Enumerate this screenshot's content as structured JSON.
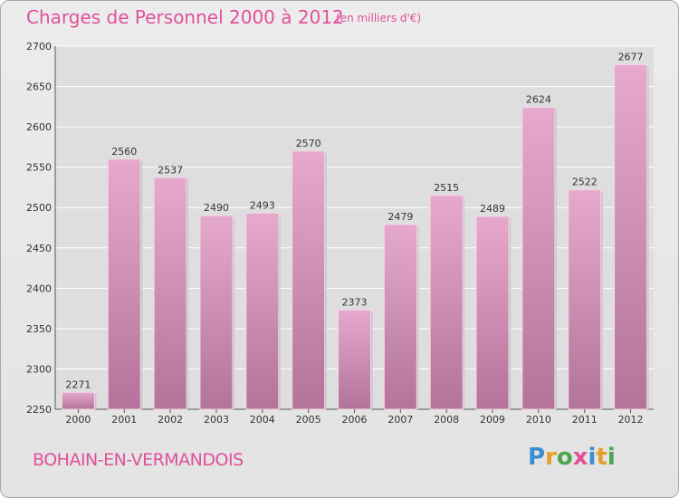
{
  "header": {
    "title": "Charges de Personnel 2000 à 2012",
    "subtitle": "(en milliers d'€)"
  },
  "footer": {
    "city": "BOHAIN-EN-VERMANDOIS",
    "logo_text": "Proxiti"
  },
  "colors": {
    "accent": "#e0519a",
    "bar_top": "#e6a9cd",
    "bar_bottom": "#b3739a",
    "grid": "#ffffff",
    "plot_bg": "#dedede"
  },
  "chart_data": {
    "type": "bar",
    "title": "Charges de Personnel 2000 à 2012",
    "subtitle": "(en milliers d'€)",
    "categories": [
      "2000",
      "2001",
      "2002",
      "2003",
      "2004",
      "2005",
      "2006",
      "2007",
      "2008",
      "2009",
      "2010",
      "2011",
      "2012"
    ],
    "values": [
      2271,
      2560,
      2537,
      2490,
      2493,
      2570,
      2373,
      2479,
      2515,
      2489,
      2624,
      2522,
      2677
    ],
    "ylim": [
      2250,
      2700
    ],
    "yticks": [
      2250,
      2300,
      2350,
      2400,
      2450,
      2500,
      2550,
      2600,
      2650,
      2700
    ],
    "grid": true,
    "xlabel": "",
    "ylabel": ""
  }
}
